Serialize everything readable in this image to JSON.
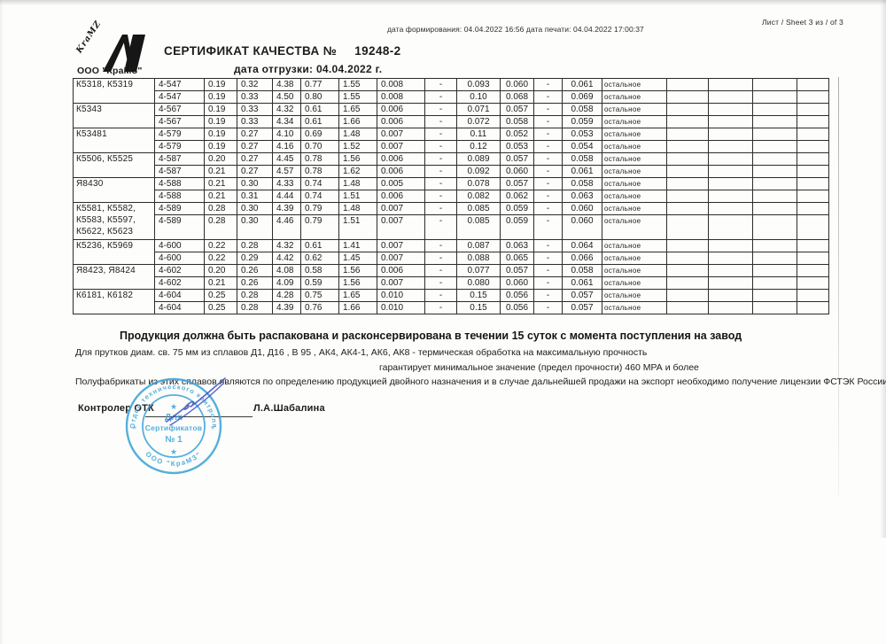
{
  "page": {
    "sheet_info": "Лист / Sheet   3 из / of   3",
    "generation_dates": "дата формирования: 04.04.2022 16:56  дата печати: 04.04.2022 17:00:37"
  },
  "header": {
    "logo_text": "KraMZ",
    "company": "ООО \"КраМЗ\"",
    "title": "СЕРТИФИКАТ КАЧЕСТВА №",
    "number": "19248-2",
    "ship_date": "дата отгрузки: 04.04.2022 г."
  },
  "table": {
    "remainder_label": "остальное",
    "empty_trailing_columns": 4,
    "groups": [
      {
        "alloy_lines": [
          "К5318, К5319"
        ],
        "rows": [
          [
            "4-547",
            "0.19",
            "0.32",
            "4.38",
            "0.77",
            "1.55",
            "0.008",
            "-",
            "0.093",
            "0.060",
            "-",
            "0.061"
          ],
          [
            "4-547",
            "0.19",
            "0.33",
            "4.50",
            "0.80",
            "1.55",
            "0.008",
            "-",
            "0.10",
            "0.068",
            "-",
            "0.069"
          ]
        ]
      },
      {
        "alloy_lines": [
          "К5343"
        ],
        "rows": [
          [
            "4-567",
            "0.19",
            "0.33",
            "4.32",
            "0.61",
            "1.65",
            "0.006",
            "-",
            "0.071",
            "0.057",
            "-",
            "0.058"
          ],
          [
            "4-567",
            "0.19",
            "0.33",
            "4.34",
            "0.61",
            "1.66",
            "0.006",
            "-",
            "0.072",
            "0.058",
            "-",
            "0.059"
          ]
        ]
      },
      {
        "alloy_lines": [
          "К53481"
        ],
        "rows": [
          [
            "4-579",
            "0.19",
            "0.27",
            "4.10",
            "0.69",
            "1.48",
            "0.007",
            "-",
            "0.11",
            "0.052",
            "-",
            "0.053"
          ],
          [
            "4-579",
            "0.19",
            "0.27",
            "4.16",
            "0.70",
            "1.52",
            "0.007",
            "-",
            "0.12",
            "0.053",
            "-",
            "0.054"
          ]
        ]
      },
      {
        "alloy_lines": [
          "К5506, К5525"
        ],
        "rows": [
          [
            "4-587",
            "0.20",
            "0.27",
            "4.45",
            "0.78",
            "1.56",
            "0.006",
            "-",
            "0.089",
            "0.057",
            "-",
            "0.058"
          ],
          [
            "4-587",
            "0.21",
            "0.27",
            "4.57",
            "0.78",
            "1.62",
            "0.006",
            "-",
            "0.092",
            "0.060",
            "-",
            "0.061"
          ]
        ]
      },
      {
        "alloy_lines": [
          "Я8430"
        ],
        "rows": [
          [
            "4-588",
            "0.21",
            "0.30",
            "4.33",
            "0.74",
            "1.48",
            "0.005",
            "-",
            "0.078",
            "0.057",
            "-",
            "0.058"
          ],
          [
            "4-588",
            "0.21",
            "0.31",
            "4.44",
            "0.74",
            "1.51",
            "0.006",
            "-",
            "0.082",
            "0.062",
            "-",
            "0.063"
          ]
        ]
      },
      {
        "alloy_lines": [
          "К5581, К5582,",
          "К5583, К5597,",
          "К5622, К5623"
        ],
        "rows": [
          [
            "4-589",
            "0.28",
            "0.30",
            "4.39",
            "0.79",
            "1.48",
            "0.007",
            "-",
            "0.085",
            "0.059",
            "-",
            "0.060"
          ],
          [
            "4-589",
            "0.28",
            "0.30",
            "4.46",
            "0.79",
            "1.51",
            "0.007",
            "-",
            "0.085",
            "0.059",
            "-",
            "0.060"
          ]
        ]
      },
      {
        "alloy_lines": [
          "К5236, К5969"
        ],
        "rows": [
          [
            "4-600",
            "0.22",
            "0.28",
            "4.32",
            "0.61",
            "1.41",
            "0.007",
            "-",
            "0.087",
            "0.063",
            "-",
            "0.064"
          ],
          [
            "4-600",
            "0.22",
            "0.29",
            "4.42",
            "0.62",
            "1.45",
            "0.007",
            "-",
            "0.088",
            "0.065",
            "-",
            "0.066"
          ]
        ]
      },
      {
        "alloy_lines": [
          "Я8423, Я8424"
        ],
        "rows": [
          [
            "4-602",
            "0.20",
            "0.26",
            "4.08",
            "0.58",
            "1.56",
            "0.006",
            "-",
            "0.077",
            "0.057",
            "-",
            "0.058"
          ],
          [
            "4-602",
            "0.21",
            "0.26",
            "4.09",
            "0.59",
            "1.56",
            "0.007",
            "-",
            "0.080",
            "0.060",
            "-",
            "0.061"
          ]
        ]
      },
      {
        "alloy_lines": [
          "К6181, К6182"
        ],
        "rows": [
          [
            "4-604",
            "0.25",
            "0.28",
            "4.28",
            "0.75",
            "1.65",
            "0.010",
            "-",
            "0.15",
            "0.056",
            "-",
            "0.057"
          ],
          [
            "4-604",
            "0.25",
            "0.28",
            "4.39",
            "0.76",
            "1.66",
            "0.010",
            "-",
            "0.15",
            "0.056",
            "-",
            "0.057"
          ]
        ]
      }
    ]
  },
  "notes": [
    "Продукция должна быть распакована и расконсервирована в течении 15 суток с момента поступления на завод",
    "Для  прутков  диам. св. 75 мм  из сплавов Д1, Д16 , В 95 , АК4,  АК4-1,  АК6, АК8 -  термическая обработка на максимальную прочность",
    "гарантирует минимальное значение (предел прочности) 460 МРА и более",
    "Полуфабрикаты из этих сплавов являются по определению продукцией двойного назначения и в случае дальнейшей продажи  на экспорт необходимо получение  лицензии ФСТЭК России."
  ],
  "signature": {
    "role": "Контролер ОТК",
    "name": "Л.А.Шабалина",
    "ink_color": "#3b4fc0"
  },
  "stamp": {
    "center_line1": "Для",
    "center_line2": "Сертификатов",
    "center_line3": "№ 1",
    "arc_top": "Отдел технического контроля",
    "arc_bottom": "ООО \"КраМЗ\"",
    "star": "★",
    "side_star": "✳",
    "color": "#3da5d9"
  }
}
